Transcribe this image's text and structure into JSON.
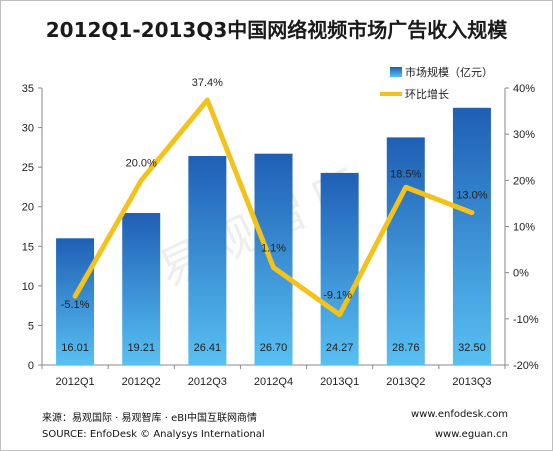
{
  "title": "2012Q1-2013Q3中国网络视频市场广告收入规模",
  "watermark": "易观智库",
  "footer": {
    "source_cn": "来源：易观国际 · 易观智库 · eBI中国互联网商情",
    "source_en": "SOURCE: EnfoDesk © Analysys International",
    "site1": "www.enfodesk.com",
    "site2": "www.eguan.cn"
  },
  "colors": {
    "bar_top": "#1f5fb5",
    "bar_bottom": "#58c0f2",
    "line": "#f3c31b"
  },
  "chart_data": {
    "type": "bar",
    "categories": [
      "2012Q1",
      "2012Q2",
      "2012Q3",
      "2012Q4",
      "2013Q1",
      "2013Q2",
      "2013Q3"
    ],
    "series": [
      {
        "name": "市场规模（亿元）",
        "type": "bar",
        "axis": "left",
        "values": [
          16.01,
          19.21,
          26.41,
          26.7,
          24.27,
          28.76,
          32.5
        ],
        "labels": [
          "16.01",
          "19.21",
          "26.41",
          "26.70",
          "24.27",
          "28.76",
          "32.50"
        ]
      },
      {
        "name": "环比增长",
        "type": "line",
        "axis": "right",
        "values": [
          -5.1,
          20.0,
          37.4,
          1.1,
          -9.1,
          18.5,
          13.0
        ],
        "labels": [
          "-5.1%",
          "20.0%",
          "37.4%",
          "1.1%",
          "-9.1%",
          "18.5%",
          "13.0%"
        ]
      }
    ],
    "y_left": {
      "min": 0,
      "max": 35,
      "ticks": [
        "0",
        "5",
        "10",
        "15",
        "20",
        "25",
        "30",
        "35"
      ]
    },
    "y_right": {
      "min": -20,
      "max": 40,
      "ticks": [
        "-20%",
        "-10%",
        "0%",
        "10%",
        "20%",
        "30%",
        "40%"
      ]
    },
    "legend_position": "top-right",
    "grid": false
  }
}
